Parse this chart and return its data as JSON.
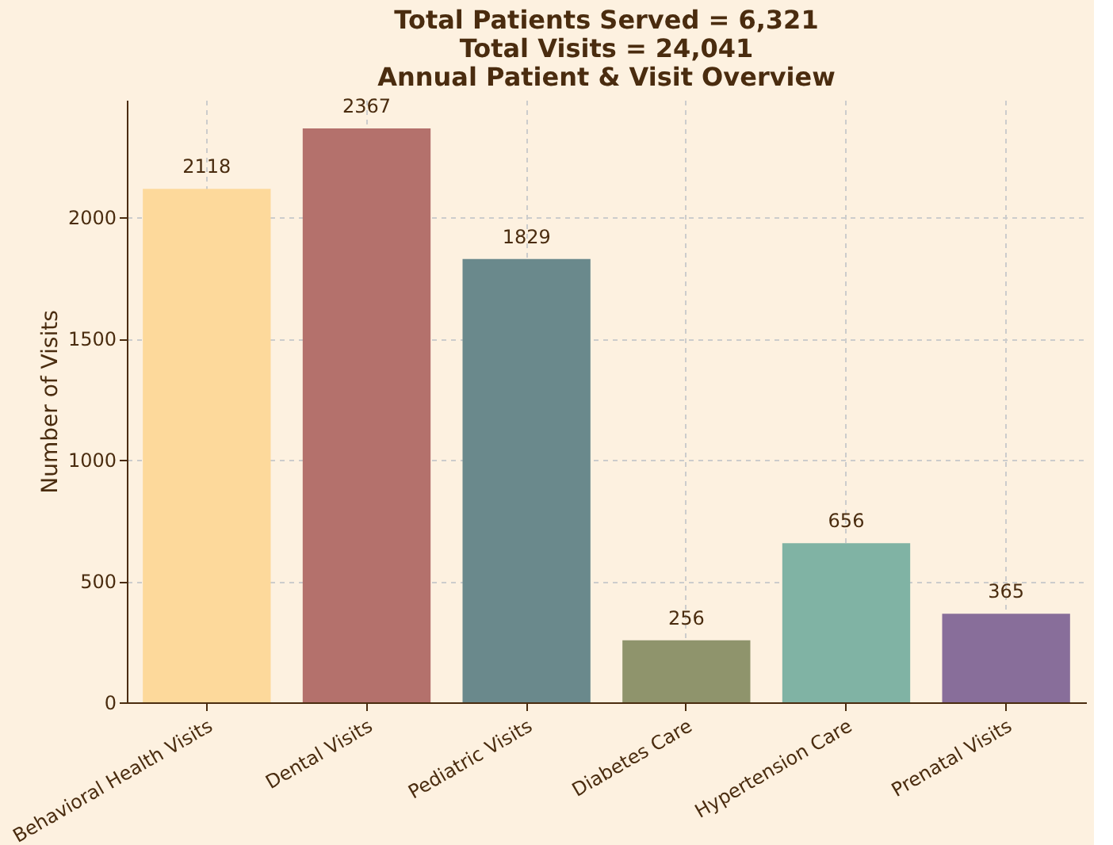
{
  "chart_data": {
    "type": "bar",
    "title": "Total Patients Served = 6,321",
    "subtitle": [
      "Total Visits = 24,041",
      "Annual Patient & Visit Overview"
    ],
    "ylabel": "Number of Visits",
    "categories": [
      "Behavioral Health Visits",
      "Dental Visits",
      "Pediatric Visits",
      "Diabetes Care",
      "Hypertension Care",
      "Prenatal Visits"
    ],
    "values": [
      2118,
      2367,
      1829,
      256,
      656,
      365
    ],
    "colors": [
      "#fdd99b",
      "#b4716c",
      "#6a898c",
      "#8f946c",
      "#80b3a4",
      "#886e9a"
    ],
    "ylim": [
      0,
      2485
    ],
    "yticks": [
      0,
      500,
      1000,
      1500,
      2000
    ],
    "grid": true,
    "data_labels": true
  }
}
